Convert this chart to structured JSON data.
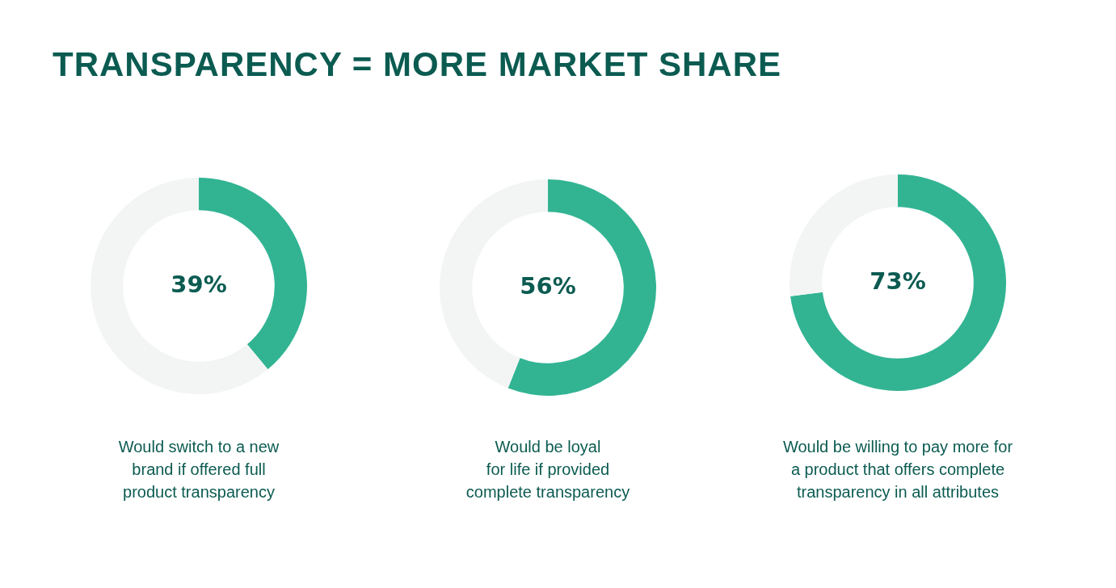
{
  "chart_data": [
    {
      "type": "donut",
      "title": "TRANSPARENCY = MORE MARKET SHARE",
      "categories": [
        null,
        null
      ],
      "values": [
        39,
        61
      ],
      "colors": [
        "#32b493",
        "#f2f5f4"
      ],
      "value_labels": [
        "39%",
        null
      ],
      "annotations": [
        "Would switch to a new\nbrand if offered full\nproduct transparency"
      ]
    },
    {
      "type": "donut",
      "categories": [
        null,
        null
      ],
      "values": [
        56,
        44
      ],
      "colors": [
        "#32b493",
        "#f2f5f4"
      ],
      "value_labels": [
        "56%",
        null
      ],
      "annotations": [
        "Would be loyal\nfor life if provided\ncomplete transparency"
      ]
    },
    {
      "type": "donut",
      "categories": [
        null,
        null
      ],
      "values": [
        73,
        27
      ],
      "colors": [
        "#32b493",
        "#f2f5f4"
      ],
      "value_labels": [
        "73%",
        null
      ],
      "annotations": [
        "Would be willing to pay more for\na product that offers complete\ntransparency in all attributes"
      ]
    }
  ]
}
